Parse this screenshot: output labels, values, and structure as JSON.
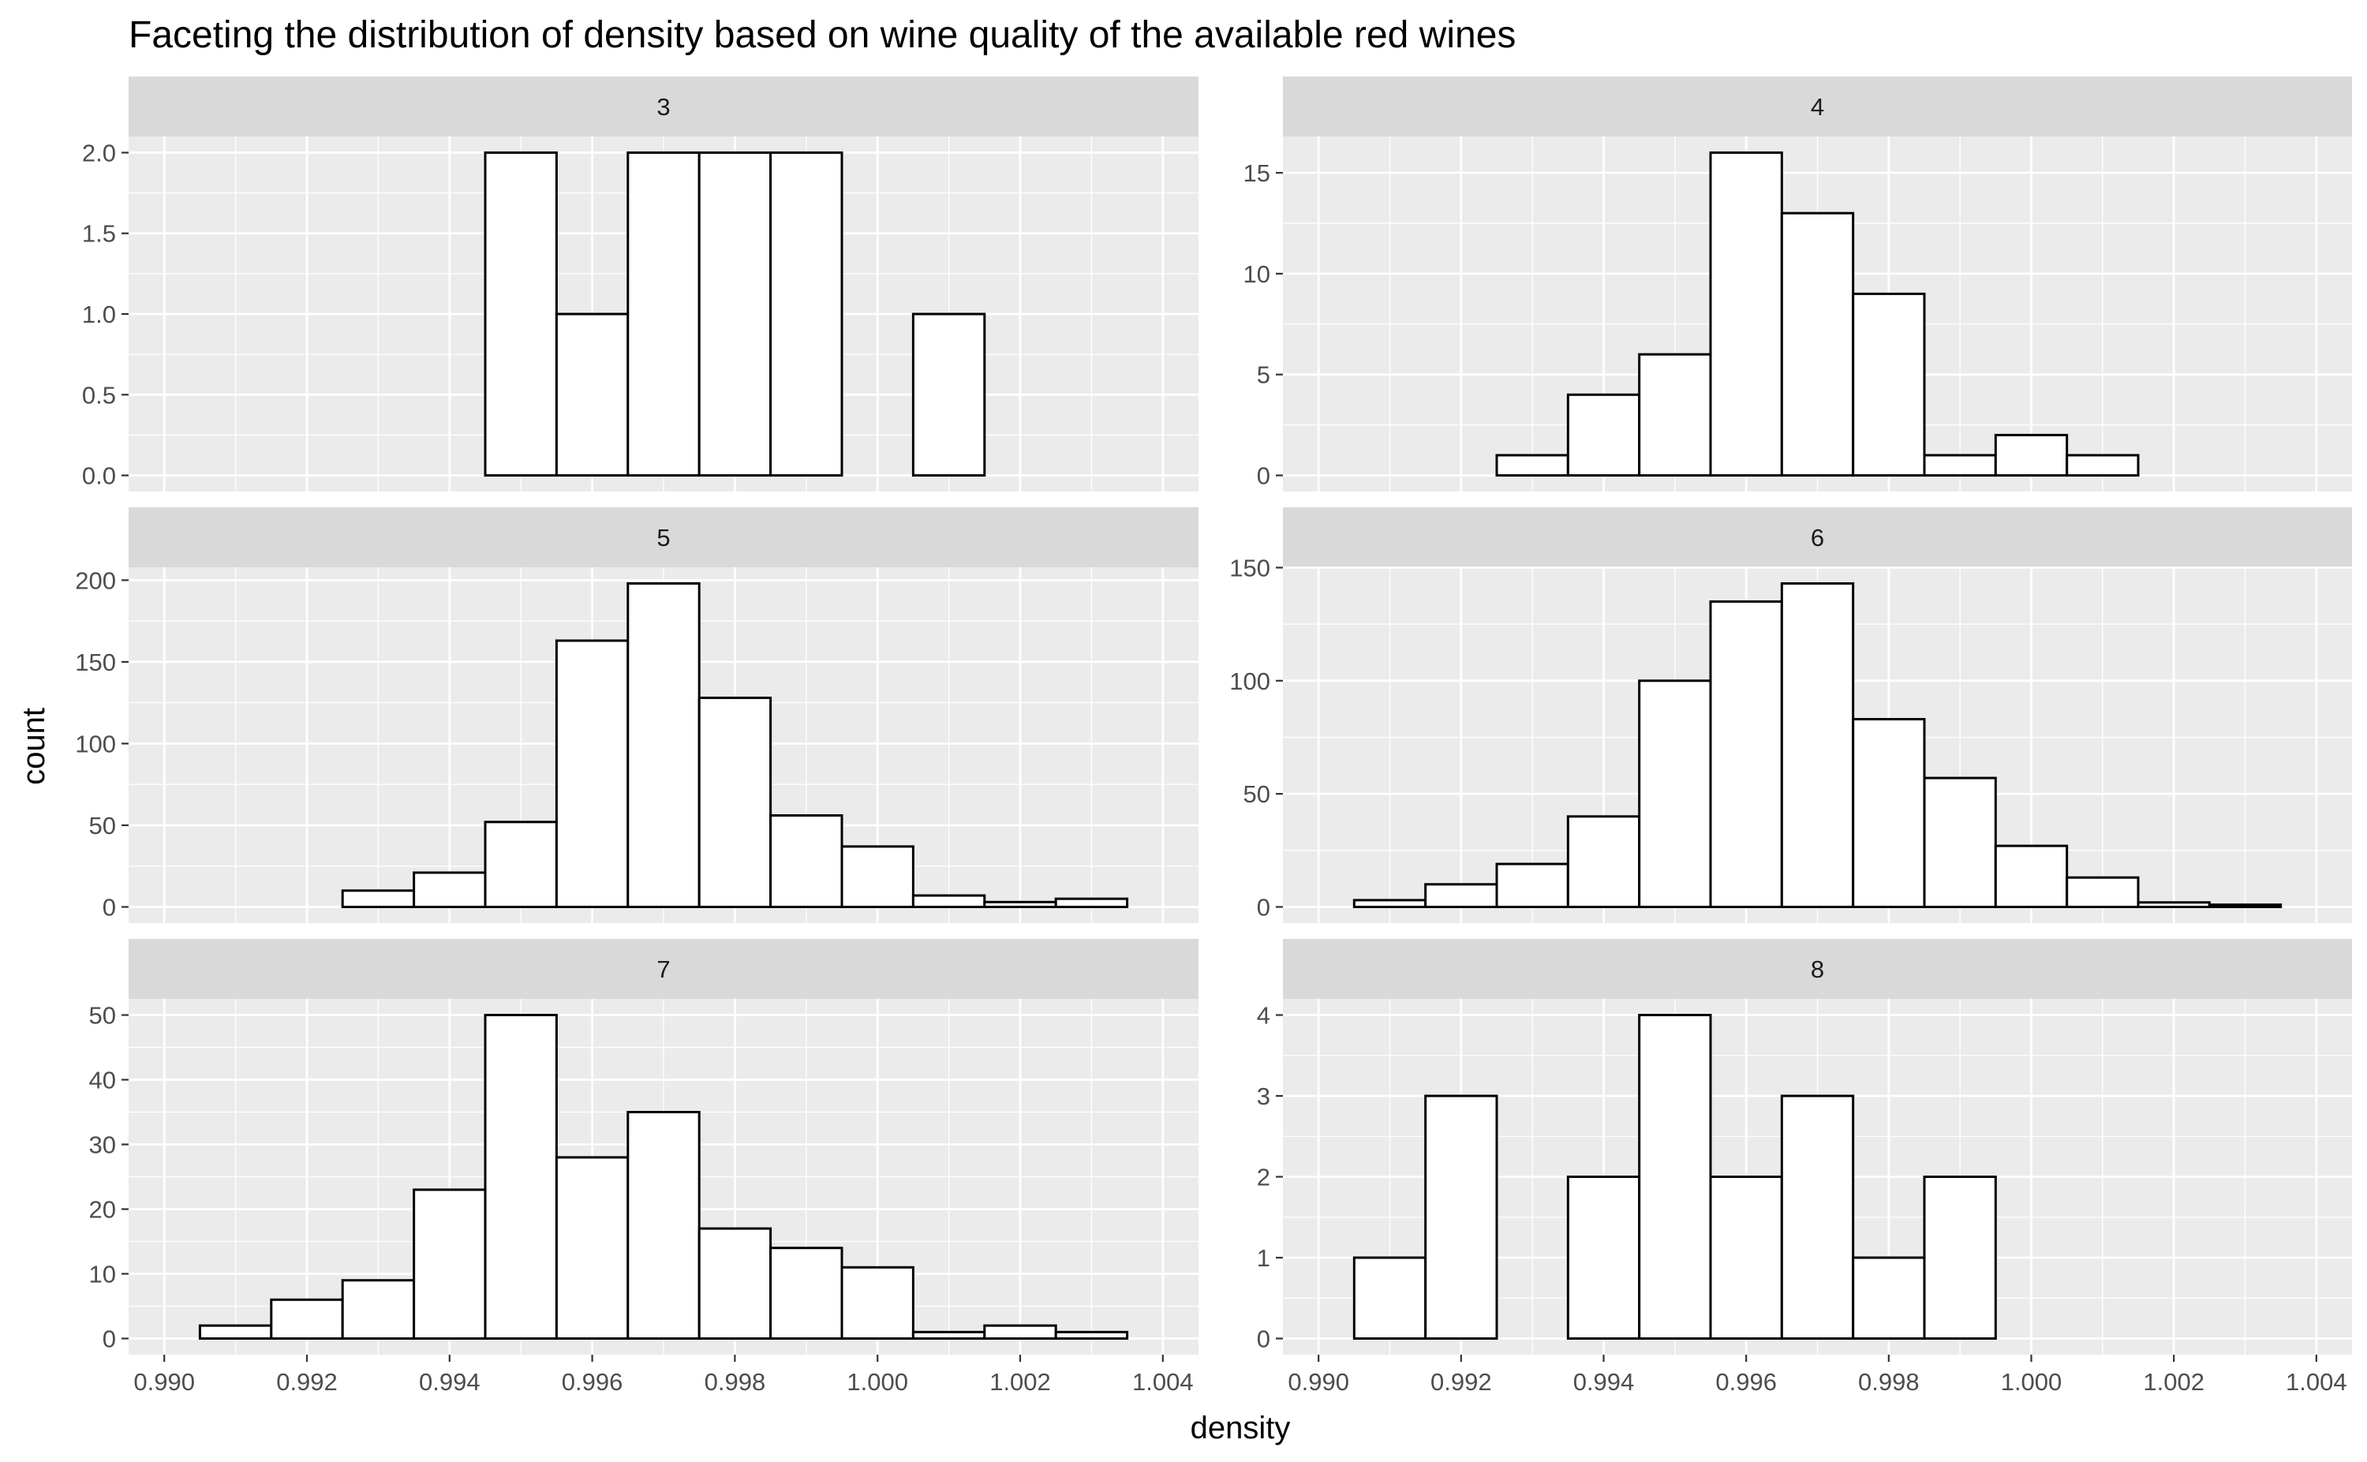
{
  "chart_data": {
    "type": "bar",
    "title": "Faceting the distribution of density based on wine quality of the available red wines",
    "xlabel": "density",
    "ylabel": "count",
    "x_ticks": [
      0.99,
      0.992,
      0.994,
      0.996,
      0.998,
      1.0,
      1.002,
      1.004
    ],
    "x_tick_labels": [
      "0.990",
      "0.992",
      "0.994",
      "0.996",
      "0.998",
      "1.000",
      "1.002",
      "1.004"
    ],
    "xlim": [
      0.9895,
      1.0045
    ],
    "bin_width": 0.001,
    "bin_centers": [
      0.991,
      0.992,
      0.993,
      0.994,
      0.995,
      0.996,
      0.997,
      0.998,
      0.999,
      1.0,
      1.001,
      1.002,
      1.003
    ],
    "grid": true,
    "legend": "none",
    "colors": {
      "panel_background": "#ebebeb",
      "strip_background": "#d9d9d9",
      "grid": "#ffffff",
      "bar_fill": "#ffffff",
      "bar_outline": "#000000",
      "tick_text": "#4d4d4d"
    },
    "facets": [
      {
        "label": "3",
        "ylim": [
          -0.1,
          2.1
        ],
        "y_ticks": [
          0,
          0.5,
          1,
          1.5,
          2
        ],
        "y_tick_labels": [
          "0.0",
          "0.5",
          "1.0",
          "1.5",
          "2.0"
        ],
        "values": [
          0,
          0,
          0,
          0,
          2,
          1,
          2,
          2,
          2,
          0,
          1,
          0,
          0
        ]
      },
      {
        "label": "4",
        "ylim": [
          -0.8,
          16.8
        ],
        "y_ticks": [
          0,
          5,
          10,
          15
        ],
        "y_tick_labels": [
          "0",
          "5",
          "10",
          "15"
        ],
        "values": [
          0,
          0,
          1,
          4,
          6,
          16,
          13,
          9,
          1,
          2,
          1,
          0,
          0
        ]
      },
      {
        "label": "5",
        "ylim": [
          -9.9,
          207.9
        ],
        "y_ticks": [
          0,
          50,
          100,
          150,
          200
        ],
        "y_tick_labels": [
          "0",
          "50",
          "100",
          "150",
          "200"
        ],
        "values": [
          0,
          0,
          10,
          21,
          52,
          163,
          198,
          128,
          56,
          37,
          7,
          3,
          5
        ]
      },
      {
        "label": "6",
        "ylim": [
          -7.15,
          150.15
        ],
        "y_ticks": [
          0,
          50,
          100,
          150
        ],
        "y_tick_labels": [
          "0",
          "50",
          "100",
          "150"
        ],
        "values": [
          3,
          10,
          19,
          40,
          100,
          135,
          143,
          83,
          57,
          27,
          13,
          2,
          1
        ]
      },
      {
        "label": "7",
        "ylim": [
          -2.5,
          52.5
        ],
        "y_ticks": [
          0,
          10,
          20,
          30,
          40,
          50
        ],
        "y_tick_labels": [
          "0",
          "10",
          "20",
          "30",
          "40",
          "50"
        ],
        "values": [
          2,
          6,
          9,
          23,
          50,
          28,
          35,
          17,
          14,
          11,
          1,
          2,
          1
        ]
      },
      {
        "label": "8",
        "ylim": [
          -0.2,
          4.2
        ],
        "y_ticks": [
          0,
          1,
          2,
          3,
          4
        ],
        "y_tick_labels": [
          "0",
          "1",
          "2",
          "3",
          "4"
        ],
        "values": [
          1,
          3,
          0,
          2,
          4,
          2,
          3,
          1,
          2,
          0,
          0,
          0,
          0
        ]
      }
    ]
  }
}
